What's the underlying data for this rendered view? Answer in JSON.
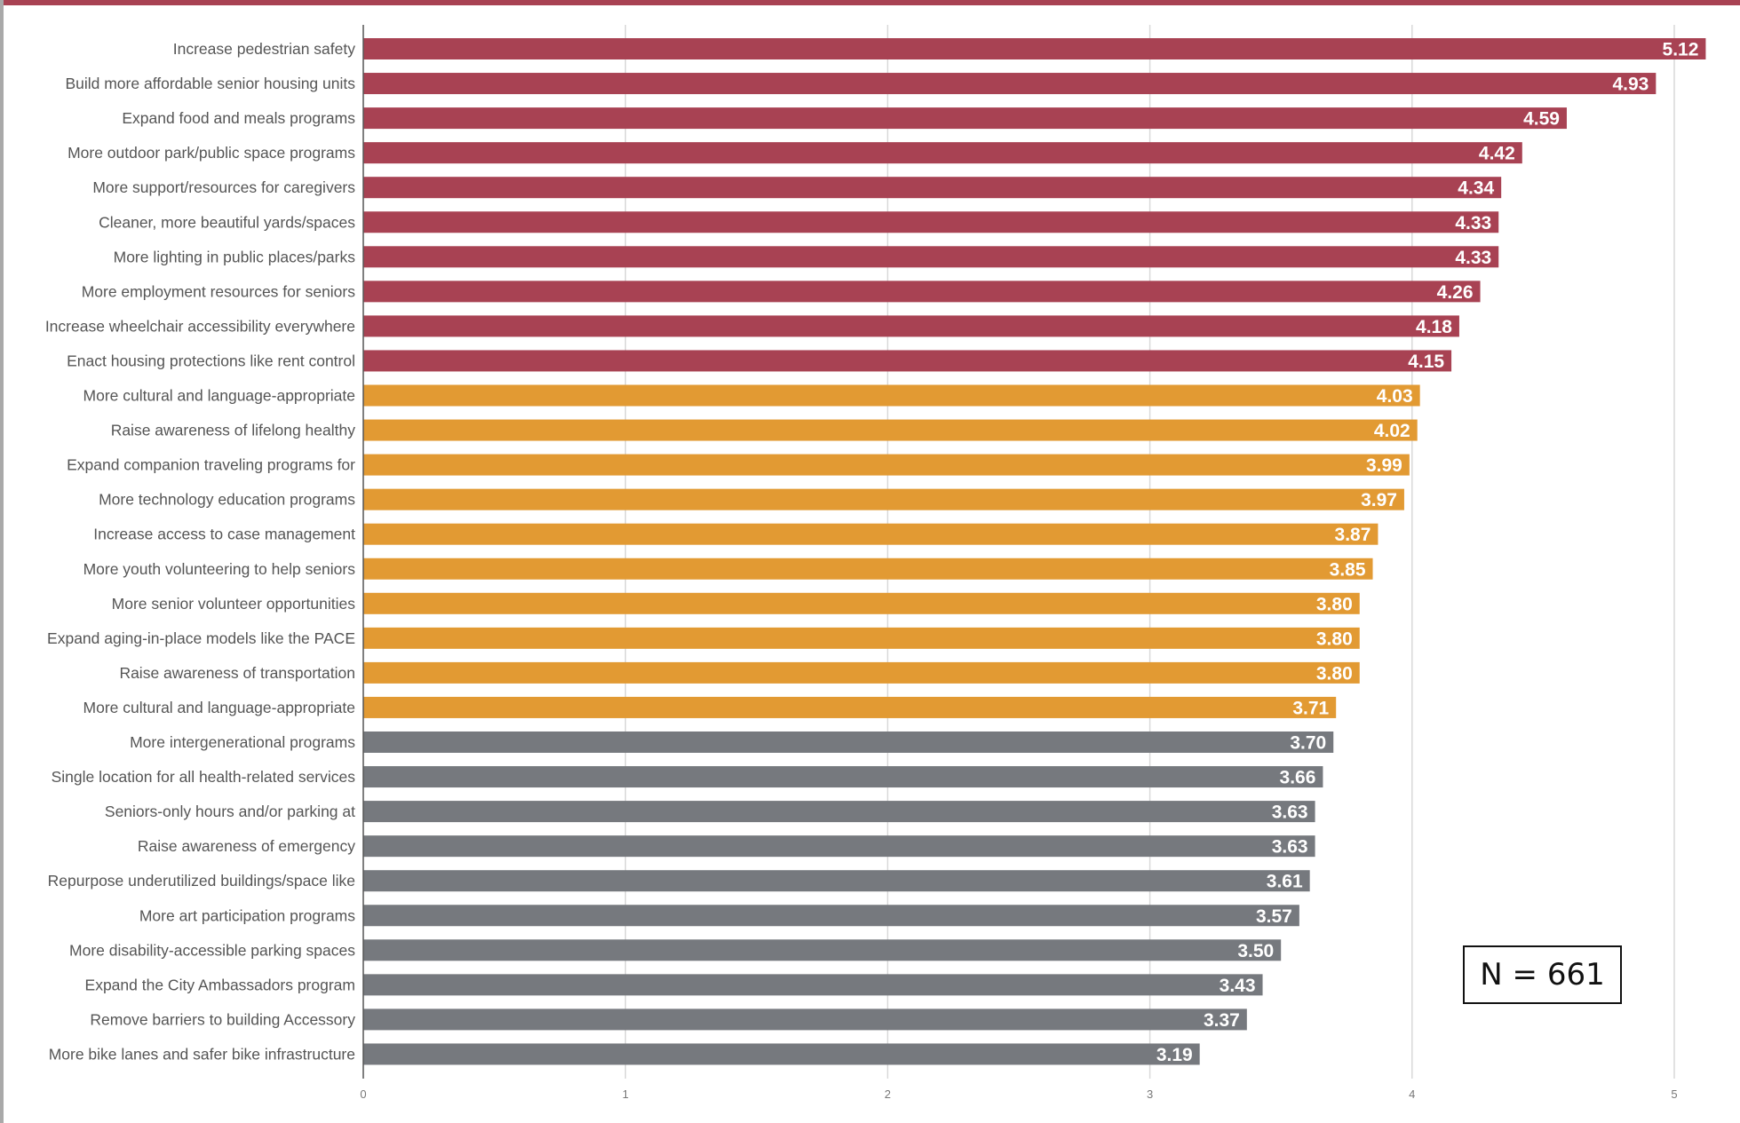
{
  "chart_data": {
    "type": "bar",
    "orientation": "horizontal",
    "categories": [
      "Increase pedestrian safety",
      "Build more affordable senior housing units",
      "Expand food and meals programs",
      "More outdoor park/public space programs",
      "More support/resources for caregivers",
      "Cleaner, more beautiful yards/spaces",
      "More lighting in public places/parks",
      "More employment resources for seniors",
      "Increase wheelchair accessibility everywhere",
      "Enact housing protections like rent control",
      "More cultural and language-appropriate",
      "Raise awareness of lifelong healthy",
      "Expand companion traveling programs for",
      "More technology education programs",
      "Increase access to case management",
      "More youth volunteering to help seniors",
      "More senior volunteer opportunities",
      "Expand aging-in-place models like the PACE",
      "Raise awareness of transportation",
      "More cultural and language-appropriate",
      "More intergenerational programs",
      "Single location for all health-related services",
      "Seniors-only hours and/or parking at",
      "Raise awareness of emergency",
      "Repurpose underutilized buildings/space like",
      "More art participation programs",
      "More disability-accessible parking spaces",
      "Expand the City Ambassadors program",
      "Remove barriers to building Accessory",
      "More bike lanes and safer bike infrastructure"
    ],
    "values": [
      5.12,
      4.93,
      4.59,
      4.42,
      4.34,
      4.33,
      4.33,
      4.26,
      4.18,
      4.15,
      4.03,
      4.02,
      3.99,
      3.97,
      3.87,
      3.85,
      3.8,
      3.8,
      3.8,
      3.71,
      3.7,
      3.66,
      3.63,
      3.63,
      3.61,
      3.57,
      3.5,
      3.43,
      3.37,
      3.19
    ],
    "value_labels": [
      "5.12",
      "4.93",
      "4.59",
      "4.42",
      "4.34",
      "4.33",
      "4.33",
      "4.26",
      "4.18",
      "4.15",
      "4.03",
      "4.02",
      "3.99",
      "3.97",
      "3.87",
      "3.85",
      "3.80",
      "3.80",
      "3.80",
      "3.71",
      "3.70",
      "3.66",
      "3.63",
      "3.63",
      "3.61",
      "3.57",
      "3.50",
      "3.43",
      "3.37",
      "3.19"
    ],
    "bar_color_groups": [
      "red",
      "red",
      "red",
      "red",
      "red",
      "red",
      "red",
      "red",
      "red",
      "red",
      "orange",
      "orange",
      "orange",
      "orange",
      "orange",
      "orange",
      "orange",
      "orange",
      "orange",
      "orange",
      "gray",
      "gray",
      "gray",
      "gray",
      "gray",
      "gray",
      "gray",
      "gray",
      "gray",
      "gray"
    ],
    "xticks": [
      "0",
      "1",
      "2",
      "3",
      "4",
      "5"
    ],
    "xlim": [
      0,
      5.15
    ],
    "grid": true,
    "title": "",
    "xlabel": "",
    "ylabel": ""
  },
  "colors": {
    "red": "#a84253",
    "orange": "#e29a33",
    "gray": "#76797e",
    "grid": "#d9d9d9",
    "axis": "#555555",
    "frame_top": "#a84253"
  },
  "annotation": {
    "n_label": "N = 661"
  }
}
